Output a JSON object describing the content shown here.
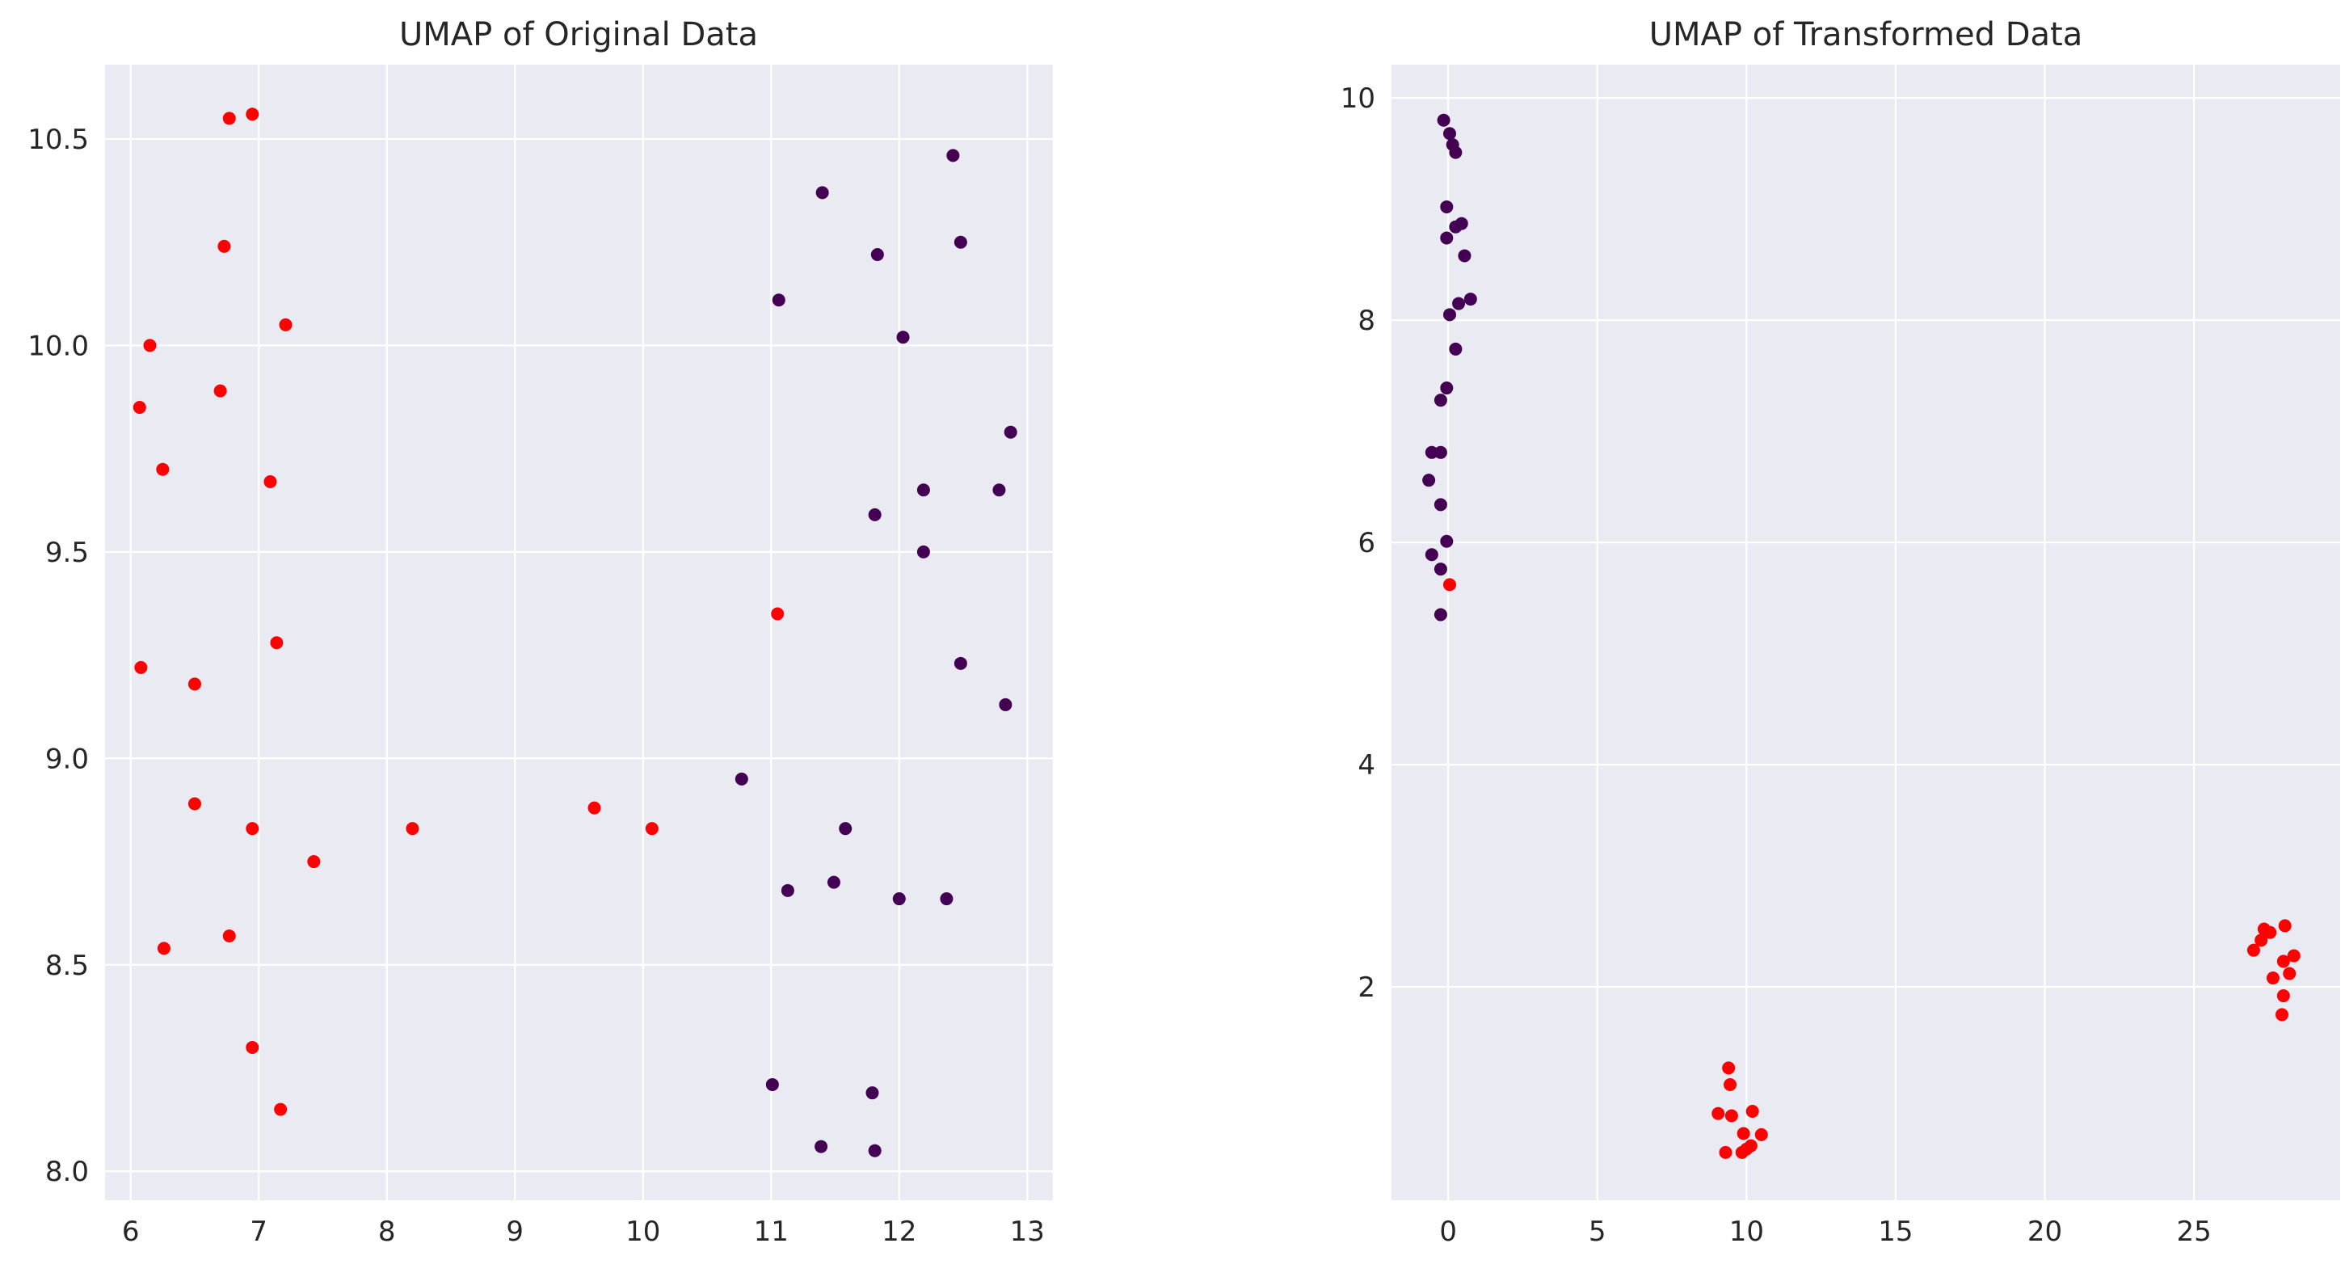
{
  "chart_data": [
    {
      "type": "scatter",
      "title": "UMAP of Original Data",
      "xlabel": "",
      "ylabel": "",
      "xlim": [
        5.8,
        13.2
      ],
      "ylim": [
        7.93,
        10.68
      ],
      "xticks": [
        6,
        7,
        8,
        9,
        10,
        11,
        12,
        13
      ],
      "yticks": [
        8.0,
        8.5,
        9.0,
        9.5,
        10.0,
        10.5
      ],
      "x_tick_labels": [
        "6",
        "7",
        "8",
        "9",
        "10",
        "11",
        "12",
        "13"
      ],
      "y_tick_labels": [
        "8.0",
        "8.5",
        "9.0",
        "9.5",
        "10.0",
        "10.5"
      ],
      "grid": true,
      "background": "#eaeaf2",
      "series": [
        {
          "color": "#ff0000",
          "points": [
            [
              6.95,
              10.56
            ],
            [
              6.77,
              10.55
            ],
            [
              6.73,
              10.24
            ],
            [
              7.21,
              10.05
            ],
            [
              6.15,
              10.0
            ],
            [
              6.07,
              9.85
            ],
            [
              6.7,
              9.89
            ],
            [
              6.25,
              9.7
            ],
            [
              7.09,
              9.67
            ],
            [
              11.05,
              9.35
            ],
            [
              7.14,
              9.28
            ],
            [
              6.08,
              9.22
            ],
            [
              6.5,
              9.18
            ],
            [
              6.5,
              8.89
            ],
            [
              6.95,
              8.83
            ],
            [
              8.2,
              8.83
            ],
            [
              9.62,
              8.88
            ],
            [
              10.07,
              8.83
            ],
            [
              7.43,
              8.75
            ],
            [
              6.77,
              8.57
            ],
            [
              6.26,
              8.54
            ],
            [
              6.95,
              8.3
            ],
            [
              7.17,
              8.15
            ]
          ]
        },
        {
          "color": "#440154",
          "points": [
            [
              12.42,
              10.46
            ],
            [
              11.4,
              10.37
            ],
            [
              12.48,
              10.25
            ],
            [
              11.83,
              10.22
            ],
            [
              11.06,
              10.11
            ],
            [
              12.03,
              10.02
            ],
            [
              12.87,
              9.79
            ],
            [
              12.19,
              9.65
            ],
            [
              12.78,
              9.65
            ],
            [
              11.81,
              9.59
            ],
            [
              12.19,
              9.5
            ],
            [
              12.48,
              9.23
            ],
            [
              12.83,
              9.13
            ],
            [
              10.77,
              8.95
            ],
            [
              11.58,
              8.83
            ],
            [
              11.49,
              8.7
            ],
            [
              11.13,
              8.68
            ],
            [
              12.0,
              8.66
            ],
            [
              12.37,
              8.66
            ],
            [
              11.01,
              8.21
            ],
            [
              11.79,
              8.19
            ],
            [
              11.39,
              8.06
            ],
            [
              11.81,
              8.05
            ]
          ]
        }
      ]
    },
    {
      "type": "scatter",
      "title": "UMAP of Transformed Data",
      "xlabel": "",
      "ylabel": "",
      "xlim": [
        -1.9,
        29.9
      ],
      "ylim": [
        0.08,
        10.3
      ],
      "xticks": [
        0,
        5,
        10,
        15,
        20,
        25
      ],
      "yticks": [
        2,
        4,
        6,
        8,
        10
      ],
      "x_tick_labels": [
        "0",
        "5",
        "10",
        "15",
        "20",
        "25"
      ],
      "y_tick_labels": [
        "2",
        "4",
        "6",
        "8",
        "10"
      ],
      "grid": true,
      "background": "#eaeaf2",
      "series": [
        {
          "color": "#440154",
          "points": [
            [
              -0.15,
              9.8
            ],
            [
              0.05,
              9.68
            ],
            [
              0.15,
              9.58
            ],
            [
              0.25,
              9.51
            ],
            [
              -0.05,
              9.02
            ],
            [
              0.45,
              8.87
            ],
            [
              0.25,
              8.84
            ],
            [
              -0.05,
              8.74
            ],
            [
              0.55,
              8.58
            ],
            [
              0.75,
              8.19
            ],
            [
              0.35,
              8.15
            ],
            [
              0.05,
              8.05
            ],
            [
              0.25,
              7.74
            ],
            [
              -0.05,
              7.39
            ],
            [
              -0.25,
              7.28
            ],
            [
              -0.55,
              6.81
            ],
            [
              -0.25,
              6.81
            ],
            [
              -0.65,
              6.56
            ],
            [
              -0.25,
              6.34
            ],
            [
              -0.05,
              6.01
            ],
            [
              -0.55,
              5.89
            ],
            [
              -0.25,
              5.76
            ],
            [
              -0.25,
              5.35
            ]
          ]
        },
        {
          "color": "#ff0000",
          "points": [
            [
              0.05,
              5.62
            ],
            [
              9.4,
              1.27
            ],
            [
              9.45,
              1.12
            ],
            [
              9.05,
              0.86
            ],
            [
              9.5,
              0.84
            ],
            [
              10.2,
              0.88
            ],
            [
              9.9,
              0.68
            ],
            [
              10.5,
              0.67
            ],
            [
              9.3,
              0.51
            ],
            [
              9.85,
              0.51
            ],
            [
              10.0,
              0.54
            ],
            [
              10.15,
              0.57
            ],
            [
              28.05,
              2.55
            ],
            [
              27.35,
              2.52
            ],
            [
              27.55,
              2.49
            ],
            [
              27.25,
              2.42
            ],
            [
              27.0,
              2.33
            ],
            [
              28.35,
              2.28
            ],
            [
              28.0,
              2.23
            ],
            [
              28.2,
              2.12
            ],
            [
              27.65,
              2.08
            ],
            [
              28.0,
              1.92
            ],
            [
              27.95,
              1.75
            ]
          ]
        }
      ]
    }
  ]
}
